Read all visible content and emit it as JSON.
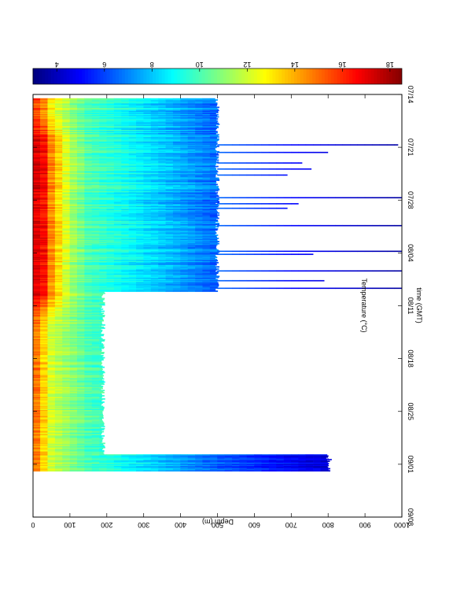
{
  "chart_data": {
    "type": "heatmap",
    "title": "Temperature (°C)",
    "xlabel": "time (GMT)",
    "ylabel": "Depth (m)",
    "x_ticks": [
      "07/14",
      "07/21",
      "07/28",
      "08/04",
      "08/11",
      "08/18",
      "08/25",
      "09/01",
      "09/08"
    ],
    "y_ticks": [
      "0",
      "100",
      "200",
      "300",
      "400",
      "500",
      "600",
      "700",
      "800",
      "900",
      "1000"
    ],
    "ylim": [
      0,
      1000
    ],
    "y_inverted": true,
    "colorbar": {
      "ticks": [
        "18",
        "16",
        "14",
        "12",
        "10",
        "8",
        "6",
        "4"
      ],
      "range": [
        3,
        18.5
      ],
      "colormap": "jet"
    },
    "orientation": "rotated-90-clockwise",
    "max_depth_profile": {
      "periods": [
        {
          "start_day": 0.5,
          "end_day": 26.1,
          "typical_max_depth": 500
        },
        {
          "start_day": 26.1,
          "end_day": 47.6,
          "typical_max_depth": 190
        },
        {
          "start_day": 47.6,
          "end_day": 49.8,
          "typical_max_depth": 800
        }
      ],
      "deep_casts": [
        {
          "day": 6.6,
          "max_depth": 990
        },
        {
          "day": 7.6,
          "max_depth": 800
        },
        {
          "day": 9.0,
          "max_depth": 730
        },
        {
          "day": 9.8,
          "max_depth": 755
        },
        {
          "day": 10.6,
          "max_depth": 690
        },
        {
          "day": 13.6,
          "max_depth": 1000
        },
        {
          "day": 14.4,
          "max_depth": 720
        },
        {
          "day": 15.0,
          "max_depth": 690
        },
        {
          "day": 17.3,
          "max_depth": 1000
        },
        {
          "day": 20.7,
          "max_depth": 1000
        },
        {
          "day": 21.1,
          "max_depth": 760
        },
        {
          "day": 23.3,
          "max_depth": 1000
        },
        {
          "day": 24.6,
          "max_depth": 790
        },
        {
          "day": 25.6,
          "max_depth": 1000
        },
        {
          "day": 48.3,
          "max_depth": 810
        }
      ]
    },
    "temperature_profile": {
      "depths": [
        0,
        20,
        50,
        100,
        150,
        200,
        300,
        400,
        500,
        700,
        1000
      ],
      "warm_period_temps": [
        16.5,
        17.5,
        14.5,
        11.5,
        10,
        9.5,
        8.5,
        7.5,
        6.5,
        5,
        3.5
      ],
      "late_period_temps": [
        15.5,
        14,
        12,
        11,
        10,
        9.5,
        8.5,
        7.5,
        6.5,
        5,
        3.5
      ]
    }
  }
}
